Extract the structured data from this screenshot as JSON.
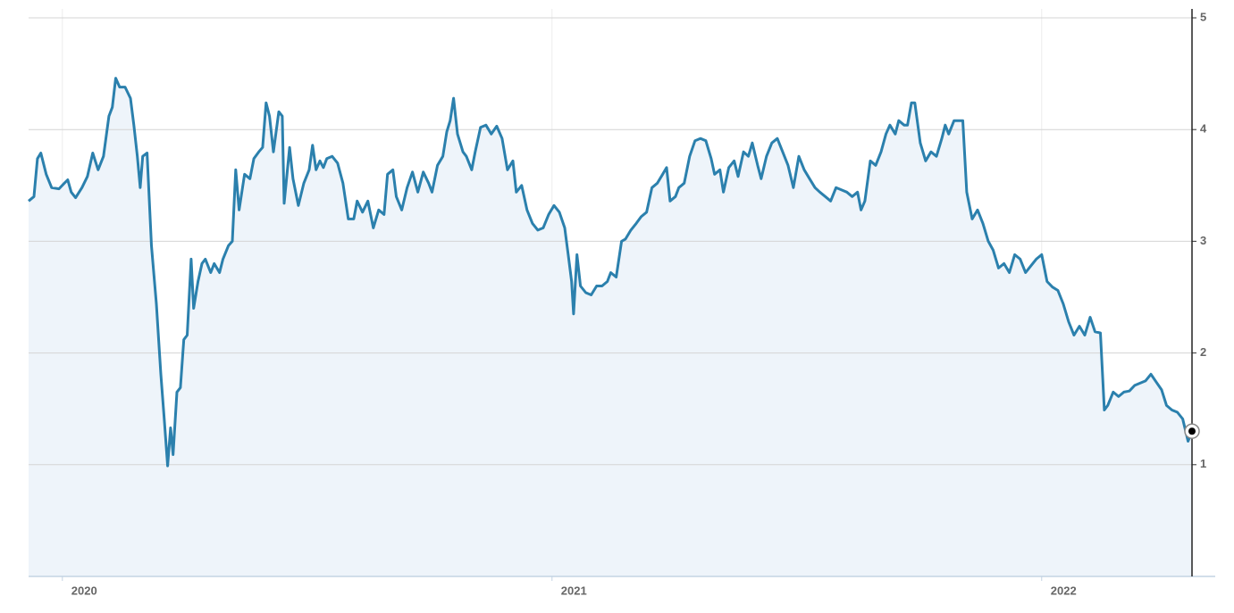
{
  "chart_data": {
    "type": "area",
    "color": "#2b80ad",
    "fill": "#eef4fa",
    "grid": true,
    "xlim": [
      2019.931,
      2022.307
    ],
    "xticks": [
      2020,
      2021,
      2022
    ],
    "ylim": [
      0,
      5
    ],
    "yticks": [
      1,
      2,
      3,
      4,
      5
    ],
    "x": [
      2019.931,
      2019.942,
      2019.949,
      2019.956,
      2019.967,
      2019.978,
      2019.993,
      2020.004,
      2020.011,
      2020.018,
      2020.027,
      2020.04,
      2020.051,
      2020.062,
      2020.073,
      2020.084,
      2020.095,
      2020.102,
      2020.109,
      2020.117,
      2020.128,
      2020.139,
      2020.146,
      2020.153,
      2020.159,
      2020.164,
      2020.173,
      2020.182,
      2020.192,
      2020.201,
      2020.208,
      2020.215,
      2020.221,
      2020.226,
      2020.234,
      2020.241,
      2020.248,
      2020.255,
      2020.263,
      2020.268,
      2020.277,
      2020.285,
      2020.292,
      2020.303,
      2020.31,
      2020.321,
      2020.328,
      2020.339,
      2020.347,
      2020.354,
      2020.361,
      2020.372,
      2020.383,
      2020.391,
      2020.401,
      2020.409,
      2020.416,
      2020.423,
      2020.431,
      2020.442,
      2020.449,
      2020.453,
      2020.464,
      2020.471,
      2020.482,
      2020.493,
      2020.504,
      2020.511,
      2020.518,
      2020.526,
      2020.533,
      2020.54,
      2020.551,
      2020.562,
      2020.573,
      2020.584,
      2020.595,
      2020.602,
      2020.613,
      2020.624,
      2020.635,
      2020.646,
      2020.657,
      2020.664,
      2020.675,
      2020.682,
      2020.693,
      2020.704,
      2020.715,
      2020.726,
      2020.737,
      2020.748,
      2020.755,
      2020.766,
      2020.777,
      2020.785,
      2020.792,
      2020.799,
      2020.807,
      2020.818,
      2020.825,
      2020.836,
      2020.843,
      2020.854,
      2020.865,
      2020.876,
      2020.887,
      2020.898,
      2020.909,
      2020.92,
      2020.927,
      2020.938,
      2020.949,
      2020.96,
      2020.971,
      2020.982,
      2020.993,
      2021.004,
      2021.015,
      2021.026,
      2021.033,
      2021.04,
      2021.044,
      2021.051,
      2021.058,
      2021.069,
      2021.08,
      2021.091,
      2021.102,
      2021.113,
      2021.12,
      2021.131,
      2021.142,
      2021.15,
      2021.161,
      2021.172,
      2021.182,
      2021.193,
      2021.204,
      2021.215,
      2021.226,
      2021.234,
      2021.241,
      2021.252,
      2021.259,
      2021.27,
      2021.281,
      2021.292,
      2021.303,
      2021.314,
      2021.325,
      2021.332,
      2021.343,
      2021.35,
      2021.361,
      2021.372,
      2021.38,
      2021.391,
      2021.401,
      2021.409,
      2021.42,
      2021.427,
      2021.438,
      2021.449,
      2021.46,
      2021.471,
      2021.482,
      2021.493,
      2021.504,
      2021.515,
      2021.526,
      2021.537,
      2021.547,
      2021.558,
      2021.569,
      2021.58,
      2021.591,
      2021.602,
      2021.613,
      2021.624,
      2021.631,
      2021.639,
      2021.65,
      2021.661,
      2021.672,
      2021.682,
      2021.69,
      2021.701,
      2021.708,
      2021.719,
      2021.726,
      2021.734,
      2021.741,
      2021.752,
      2021.763,
      2021.774,
      2021.785,
      2021.796,
      2021.803,
      2021.81,
      2021.821,
      2021.832,
      2021.839,
      2021.847,
      2021.858,
      2021.869,
      2021.88,
      2021.891,
      2021.901,
      2021.912,
      2021.923,
      2021.934,
      2021.945,
      2021.956,
      2021.967,
      2021.978,
      2021.989,
      2022.0,
      2022.011,
      2022.022,
      2022.033,
      2022.044,
      2022.055,
      2022.066,
      2022.077,
      2022.088,
      2022.099,
      2022.109,
      2022.12,
      2022.128,
      2022.135,
      2022.146,
      2022.157,
      2022.168,
      2022.179,
      2022.19,
      2022.201,
      2022.212,
      2022.223,
      2022.234,
      2022.245,
      2022.255,
      2022.266,
      2022.277,
      2022.288,
      2022.299,
      2022.307
    ],
    "values": [
      3.36,
      3.4,
      3.74,
      3.79,
      3.6,
      3.48,
      3.47,
      3.52,
      3.55,
      3.44,
      3.39,
      3.48,
      3.58,
      3.79,
      3.64,
      3.76,
      4.12,
      4.2,
      4.46,
      4.38,
      4.38,
      4.28,
      4.04,
      3.76,
      3.48,
      3.76,
      3.79,
      2.96,
      2.44,
      1.81,
      1.41,
      0.99,
      1.33,
      1.09,
      1.65,
      1.69,
      2.12,
      2.16,
      2.84,
      2.4,
      2.64,
      2.8,
      2.84,
      2.72,
      2.8,
      2.72,
      2.84,
      2.96,
      3.0,
      3.64,
      3.28,
      3.6,
      3.56,
      3.74,
      3.8,
      3.84,
      4.24,
      4.12,
      3.8,
      4.16,
      4.12,
      3.34,
      3.84,
      3.56,
      3.32,
      3.52,
      3.64,
      3.86,
      3.64,
      3.72,
      3.66,
      3.74,
      3.76,
      3.7,
      3.52,
      3.2,
      3.2,
      3.36,
      3.26,
      3.36,
      3.12,
      3.28,
      3.24,
      3.6,
      3.64,
      3.4,
      3.28,
      3.48,
      3.62,
      3.44,
      3.62,
      3.52,
      3.44,
      3.68,
      3.76,
      3.98,
      4.08,
      4.28,
      3.96,
      3.8,
      3.76,
      3.64,
      3.8,
      4.02,
      4.04,
      3.96,
      4.03,
      3.92,
      3.64,
      3.72,
      3.44,
      3.5,
      3.28,
      3.16,
      3.1,
      3.12,
      3.24,
      3.32,
      3.26,
      3.12,
      2.88,
      2.64,
      2.35,
      2.88,
      2.6,
      2.54,
      2.52,
      2.6,
      2.6,
      2.64,
      2.72,
      2.68,
      3.0,
      3.02,
      3.1,
      3.16,
      3.22,
      3.26,
      3.48,
      3.52,
      3.6,
      3.66,
      3.36,
      3.4,
      3.48,
      3.52,
      3.76,
      3.9,
      3.92,
      3.9,
      3.74,
      3.6,
      3.64,
      3.44,
      3.66,
      3.72,
      3.58,
      3.8,
      3.76,
      3.88,
      3.68,
      3.56,
      3.76,
      3.88,
      3.92,
      3.8,
      3.68,
      3.48,
      3.76,
      3.64,
      3.56,
      3.48,
      3.44,
      3.4,
      3.36,
      3.48,
      3.46,
      3.44,
      3.4,
      3.44,
      3.28,
      3.36,
      3.72,
      3.68,
      3.8,
      3.96,
      4.04,
      3.96,
      4.08,
      4.04,
      4.04,
      4.24,
      4.24,
      3.88,
      3.72,
      3.8,
      3.76,
      3.92,
      4.04,
      3.96,
      4.08,
      4.08,
      4.08,
      3.44,
      3.2,
      3.28,
      3.16,
      3.0,
      2.92,
      2.76,
      2.8,
      2.72,
      2.88,
      2.84,
      2.72,
      2.78,
      2.84,
      2.88,
      2.64,
      2.59,
      2.56,
      2.44,
      2.28,
      2.16,
      2.24,
      2.16,
      2.32,
      2.19,
      2.18,
      1.49,
      1.53,
      1.65,
      1.61,
      1.65,
      1.66,
      1.71,
      1.73,
      1.75,
      1.81,
      1.74,
      1.67,
      1.53,
      1.49,
      1.47,
      1.41,
      1.21,
      1.3
    ]
  }
}
